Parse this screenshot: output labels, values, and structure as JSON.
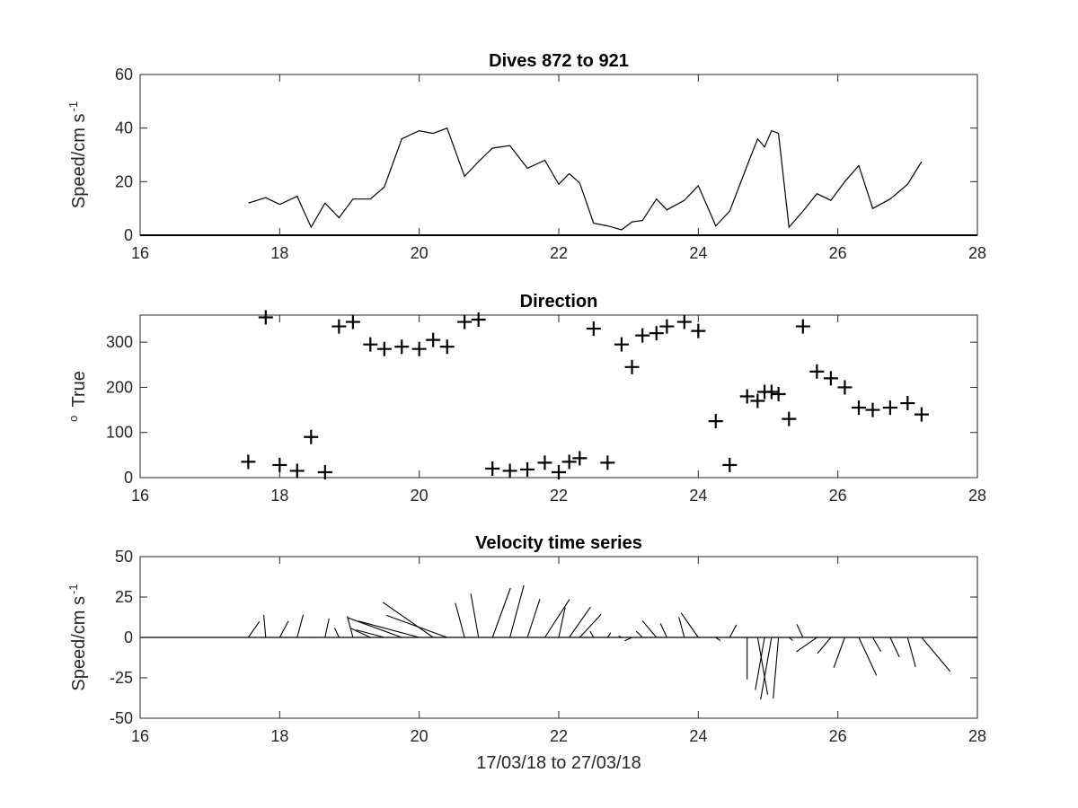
{
  "chart_data": [
    {
      "type": "line",
      "title": "Dives 872 to 921",
      "ylabel": "Speed/cm s",
      "ylabel_sup": "-1",
      "xlim": [
        16,
        28
      ],
      "ylim": [
        0,
        60
      ],
      "xticks": [
        16,
        18,
        20,
        22,
        24,
        26,
        28
      ],
      "yticks": [
        0,
        20,
        40,
        60
      ],
      "zero_line": true,
      "x": [
        17.55,
        17.8,
        18.0,
        18.25,
        18.45,
        18.65,
        18.85,
        19.05,
        19.3,
        19.5,
        19.75,
        20.0,
        20.2,
        20.4,
        20.65,
        20.85,
        21.05,
        21.3,
        21.55,
        21.8,
        22.0,
        22.15,
        22.3,
        22.5,
        22.7,
        22.9,
        23.05,
        23.2,
        23.4,
        23.55,
        23.8,
        24.0,
        24.25,
        24.45,
        24.7,
        24.85,
        24.95,
        25.05,
        25.15,
        25.3,
        25.5,
        25.7,
        25.9,
        26.1,
        26.3,
        26.5,
        26.75,
        27.0,
        27.2
      ],
      "y": [
        12,
        14,
        11.5,
        14.5,
        3,
        12,
        6.5,
        13.5,
        13.5,
        18,
        36,
        39,
        38,
        40,
        22,
        27.5,
        32.5,
        33.5,
        25,
        28,
        19,
        23,
        19.5,
        4.5,
        3.5,
        2,
        5,
        5.5,
        13.5,
        9.5,
        13,
        18.5,
        3.5,
        9,
        26,
        36,
        33,
        39,
        38,
        3,
        9,
        15.5,
        13,
        20,
        26,
        10,
        13.5,
        19,
        27.5
      ]
    },
    {
      "type": "scatter",
      "marker": "+",
      "title": "Direction",
      "ylabel": "True",
      "ylabel_sup": "o",
      "xlim": [
        16,
        28
      ],
      "ylim": [
        0,
        360
      ],
      "xticks": [
        16,
        18,
        20,
        22,
        24,
        26,
        28
      ],
      "yticks": [
        0,
        100,
        200,
        300
      ],
      "x": [
        17.55,
        17.8,
        18.0,
        18.25,
        18.45,
        18.65,
        18.85,
        19.05,
        19.3,
        19.5,
        19.75,
        20.0,
        20.2,
        20.4,
        20.65,
        20.85,
        21.05,
        21.3,
        21.55,
        21.8,
        22.0,
        22.15,
        22.3,
        22.5,
        22.7,
        22.9,
        23.05,
        23.2,
        23.4,
        23.55,
        23.8,
        24.0,
        24.25,
        24.45,
        24.7,
        24.85,
        24.95,
        25.05,
        25.15,
        25.3,
        25.5,
        25.7,
        25.9,
        26.1,
        26.3,
        26.5,
        26.75,
        27.0,
        27.2
      ],
      "y": [
        35,
        355,
        28,
        15,
        90,
        12,
        335,
        345,
        295,
        285,
        290,
        285,
        305,
        290,
        345,
        350,
        20,
        15,
        18,
        33,
        12,
        35,
        43,
        330,
        33,
        295,
        245,
        315,
        320,
        335,
        345,
        325,
        125,
        28,
        180,
        170,
        190,
        190,
        185,
        130,
        335,
        235,
        220,
        200,
        155,
        150,
        155,
        165,
        140
      ]
    },
    {
      "type": "stick",
      "title": "Velocity time series",
      "ylabel": "Speed/cm s",
      "ylabel_sup": "-1",
      "xlabel": "17/03/18 to 27/03/18",
      "xlim": [
        16,
        28
      ],
      "ylim": [
        -50,
        50
      ],
      "xticks": [
        16,
        18,
        20,
        22,
        24,
        26,
        28
      ],
      "yticks": [
        50,
        25,
        0,
        -25,
        -50
      ],
      "ytick_labels": [
        "50",
        "25",
        "0",
        "-25",
        "-50"
      ],
      "zero_line": true,
      "note": "each stick starts at (time, 0) and points along the velocity vector; speed and direction as in the two panels above"
    }
  ]
}
